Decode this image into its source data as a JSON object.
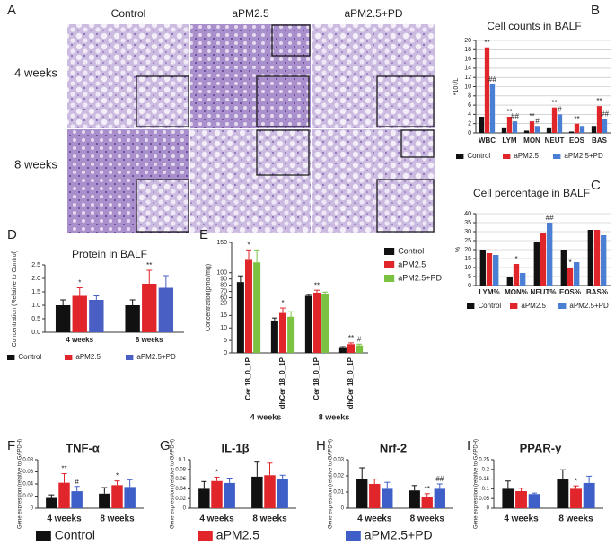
{
  "figure_a": {
    "panel": "A",
    "columns": [
      "Control",
      "aPM2.5",
      "aPM2.5+PD"
    ],
    "rows": [
      "4 weeks",
      "8 weeks"
    ]
  },
  "chart_data": [
    {
      "panel": "B",
      "type": "bar",
      "title": "Cell counts in BALF",
      "y_label": "*10⁹/L",
      "categories": [
        "WBC",
        "LYM",
        "MON",
        "NEUT",
        "EOS",
        "BAS"
      ],
      "ylim": [
        0,
        20
      ],
      "yticks": [
        0,
        2,
        4,
        6,
        8,
        10,
        12,
        14,
        16,
        18,
        20
      ],
      "grid": true,
      "legend": "bottom",
      "series": [
        {
          "name": "Control",
          "color": "#111111",
          "values": [
            3.5,
            1,
            0.5,
            1,
            0.3,
            1.5
          ]
        },
        {
          "name": "aPM2.5",
          "color": "#e0262b",
          "values": [
            18.5,
            3.5,
            2.5,
            5.5,
            2,
            5.8
          ],
          "markers": [
            "**",
            "**",
            "**",
            "**",
            "**",
            "**"
          ]
        },
        {
          "name": "aPM2.5+PD",
          "color": "#4a7fd4",
          "values": [
            10.5,
            2.5,
            1.5,
            4,
            1.5,
            3
          ],
          "markers": [
            "##",
            "##",
            "#",
            "#",
            null,
            "##"
          ]
        }
      ]
    },
    {
      "panel": "C",
      "type": "bar",
      "title": "Cell percentage in BALF",
      "y_label": "%",
      "categories": [
        "LYM%",
        "MON%",
        "NEUT%",
        "EOS%",
        "BAS%"
      ],
      "ylim": [
        0,
        40
      ],
      "yticks": [
        0,
        5,
        10,
        15,
        20,
        25,
        30,
        35,
        40
      ],
      "grid": true,
      "legend": "bottom",
      "series": [
        {
          "name": "Control",
          "color": "#111111",
          "values": [
            20,
            5,
            24,
            20,
            31
          ]
        },
        {
          "name": "aPM2.5",
          "color": "#e0262b",
          "values": [
            18,
            12,
            29,
            10,
            31
          ],
          "markers": [
            null,
            "*",
            null,
            "*",
            null
          ]
        },
        {
          "name": "aPM2.5+PD",
          "color": "#4a7fd4",
          "values": [
            17,
            7,
            35,
            13,
            28
          ],
          "markers": [
            null,
            null,
            "##",
            null,
            null
          ]
        }
      ]
    },
    {
      "panel": "D",
      "type": "bar",
      "title": "Protein in BALF",
      "y_label": "Concentration (Relative to Control)",
      "categories": [
        "4 weeks",
        "8 weeks"
      ],
      "ylim": [
        0,
        2.5
      ],
      "yticks": [
        {
          "value": 0,
          "label": "0.0"
        },
        0.5,
        {
          "value": 1,
          "label": "1.0"
        },
        1.5,
        {
          "value": 2,
          "label": "2.0"
        },
        2.5
      ],
      "legend": "bottom",
      "series": [
        {
          "name": "Control",
          "color": "#111111",
          "values": [
            1.0,
            1.0
          ],
          "errors": [
            0.2,
            0.2
          ]
        },
        {
          "name": "aPM2.5",
          "color": "#e0262b",
          "values": [
            1.35,
            1.8
          ],
          "errors": [
            0.3,
            0.5
          ],
          "markers": [
            "*",
            "**"
          ]
        },
        {
          "name": "aPM2.5+PD",
          "color": "#4a5fc4",
          "values": [
            1.2,
            1.65
          ],
          "errors": [
            0.15,
            0.45
          ]
        }
      ]
    },
    {
      "panel": "E",
      "type": "bar",
      "y_label": "Concentration(pmol/mg)",
      "categories": [
        "Cer 18_0_1P",
        "dhCer 18_0_1P",
        "Cer 18_0_1P",
        "dhCer 18_0_1P"
      ],
      "groups": [
        "4 weeks",
        "8 weeks"
      ],
      "ysegments": [
        {
          "ylim": [
            0,
            20
          ],
          "yticks": [
            0,
            5,
            10,
            15,
            20
          ]
        },
        {
          "ylim": [
            60,
            100
          ],
          "yticks": [
            60,
            70,
            80,
            90,
            100
          ]
        },
        {
          "ylim": [
            100,
            150
          ],
          "yticks": [
            150
          ]
        }
      ],
      "legend": "right",
      "series": [
        {
          "name": "Control",
          "color": "#111111",
          "values": [
            85,
            13,
            63,
            2
          ],
          "errors": [
            10,
            1,
            2,
            0.5
          ]
        },
        {
          "name": "aPM2.5",
          "color": "#e0262b",
          "values": [
            115,
            16,
            68,
            3.5
          ],
          "errors": [
            20,
            2,
            4,
            0.5
          ],
          "markers": [
            "*",
            "*",
            "**",
            "**"
          ]
        },
        {
          "name": "aPM2.5+PD",
          "color": "#7cc242",
          "values": [
            110,
            14.5,
            66,
            3
          ],
          "errors": [
            25,
            2,
            3,
            0.5
          ],
          "markers": [
            null,
            null,
            null,
            "#"
          ]
        }
      ]
    },
    {
      "panel": "F",
      "type": "bar",
      "title": "TNF-α",
      "y_label": "Gene expression (relative to GAPDH)",
      "categories": [
        "4 weeks",
        "8 weeks"
      ],
      "ylim": [
        0,
        0.08
      ],
      "yticks": [
        0,
        0.02,
        0.04,
        0.06,
        0.08
      ],
      "legend": "shared",
      "series": [
        {
          "name": "Control",
          "color": "#111111",
          "values": [
            0.017,
            0.024
          ],
          "errors": [
            0.005,
            0.01
          ]
        },
        {
          "name": "aPM2.5",
          "color": "#e0262b",
          "values": [
            0.042,
            0.038
          ],
          "errors": [
            0.015,
            0.007
          ],
          "markers": [
            "**",
            "*"
          ]
        },
        {
          "name": "aPM2.5+PD",
          "color": "#3f5fc8",
          "values": [
            0.028,
            0.035
          ],
          "errors": [
            0.008,
            0.012
          ],
          "markers": [
            "#",
            null
          ]
        }
      ]
    },
    {
      "panel": "G",
      "type": "bar",
      "title": "IL-1β",
      "y_label": "Gene expression (relative to GAPDH)",
      "categories": [
        "4 weeks",
        "8 weeks"
      ],
      "ylim": [
        0,
        0.1
      ],
      "yticks": [
        0,
        0.02,
        0.04,
        0.06,
        0.08,
        0.1
      ],
      "series": [
        {
          "color": "#111111",
          "values": [
            0.04,
            0.065
          ],
          "errors": [
            0.015,
            0.03
          ]
        },
        {
          "color": "#e0262b",
          "values": [
            0.056,
            0.068
          ],
          "errors": [
            0.008,
            0.025
          ],
          "markers": [
            "*",
            null
          ]
        },
        {
          "color": "#3f5fc8",
          "values": [
            0.052,
            0.06
          ],
          "errors": [
            0.01,
            0.008
          ]
        }
      ]
    },
    {
      "panel": "H",
      "type": "bar",
      "title": "Nrf-2",
      "y_label": "Gene expression (relative to GAPDH)",
      "categories": [
        "4 weeks",
        "8 weeks"
      ],
      "ylim": [
        0,
        0.03
      ],
      "yticks": [
        0,
        0.01,
        0.02,
        0.03
      ],
      "series": [
        {
          "color": "#111111",
          "values": [
            0.018,
            0.011
          ],
          "errors": [
            0.007,
            0.003
          ]
        },
        {
          "color": "#e0262b",
          "values": [
            0.015,
            0.007
          ],
          "errors": [
            0.003,
            0.002
          ],
          "markers": [
            null,
            "**"
          ]
        },
        {
          "color": "#3f5fc8",
          "values": [
            0.012,
            0.012
          ],
          "errors": [
            0.004,
            0.003
          ],
          "markers": [
            null,
            "##"
          ]
        }
      ]
    },
    {
      "panel": "I",
      "type": "bar",
      "title": "PPAR-γ",
      "y_label": "Gene expression (relative to GAPDH)",
      "categories": [
        "4 weeks",
        "8 weeks"
      ],
      "ylim": [
        0,
        0.25
      ],
      "yticks": [
        0,
        0.05,
        0.1,
        0.15,
        0.2,
        0.25
      ],
      "series": [
        {
          "color": "#111111",
          "values": [
            0.1,
            0.148
          ],
          "errors": [
            0.04,
            0.05
          ]
        },
        {
          "color": "#e0262b",
          "values": [
            0.088,
            0.1
          ],
          "errors": [
            0.015,
            0.015
          ],
          "markers": [
            null,
            "*"
          ]
        },
        {
          "color": "#3f5fc8",
          "values": [
            0.073,
            0.13
          ],
          "errors": [
            0.005,
            0.035
          ]
        }
      ]
    }
  ]
}
